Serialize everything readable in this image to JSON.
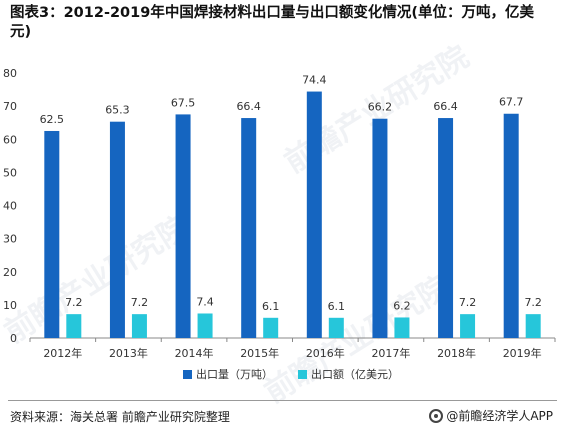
{
  "title": "图表3：2012-2019年中国焊接材料出口量与出口额变化情况(单位：万吨，亿美元)",
  "source": "资料来源：海关总署 前瞻产业研究院整理",
  "brand": "@前瞻经济学人APP",
  "watermark": "前瞻产业研究院",
  "colors": {
    "volume": "#1565C0",
    "value": "#26C6DA",
    "axis": "#888888",
    "text": "#333333"
  },
  "chart_data": {
    "type": "bar",
    "categories": [
      "2012年",
      "2013年",
      "2014年",
      "2015年",
      "2016年",
      "2017年",
      "2018年",
      "2019年"
    ],
    "series": [
      {
        "name": "出口量（万吨）",
        "values": [
          62.5,
          65.3,
          67.5,
          66.4,
          74.4,
          66.2,
          66.4,
          67.7
        ]
      },
      {
        "name": "出口额（亿美元）",
        "values": [
          7.2,
          7.2,
          7.4,
          6.1,
          6.1,
          6.2,
          7.2,
          7.2
        ]
      }
    ],
    "y_ticks": [
      "0",
      "10",
      "20",
      "30",
      "40",
      "50",
      "60",
      "70",
      "80"
    ],
    "ylim": [
      0,
      80
    ],
    "grid": false,
    "legend_position": "bottom"
  }
}
